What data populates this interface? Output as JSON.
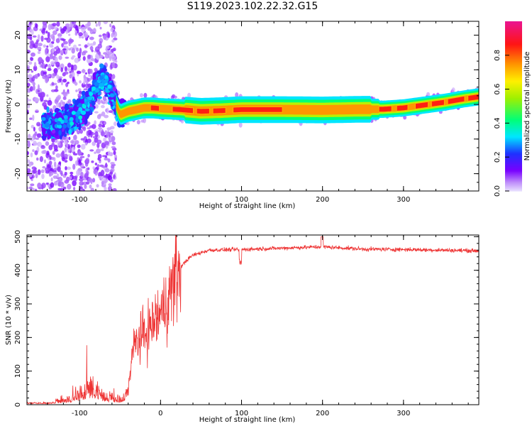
{
  "title": "S119.2023.102.22.32.G15",
  "chart_data": [
    {
      "type": "heatmap",
      "xlabel": "Height of straight line (km)",
      "ylabel": "Frequency (Hz)",
      "xlim": [
        -165,
        393
      ],
      "ylim": [
        -25,
        24
      ],
      "xticks": [
        -100,
        0,
        100,
        200,
        300
      ],
      "yticks": [
        -20,
        -10,
        0,
        10,
        20
      ],
      "colorbar": {
        "label": "Normalized spectral amplitude",
        "range": [
          0,
          1
        ],
        "ticks": [
          "0.0",
          "0.2",
          "0.4",
          "0.6",
          "0.8"
        ],
        "tick_values": [
          0,
          0.2,
          0.4,
          0.6,
          0.8
        ]
      },
      "ridge": {
        "x": [
          -130,
          -110,
          -90,
          -80,
          -70,
          -60,
          -50,
          -40,
          -30,
          -20,
          -10,
          0,
          25,
          50,
          75,
          100,
          150,
          200,
          250,
          275,
          300,
          325,
          350,
          375,
          393
        ],
        "y": [
          -6,
          -4,
          0,
          5,
          8,
          3,
          -3,
          -2,
          -1.5,
          -1,
          -1,
          -1.2,
          -1.5,
          -2,
          -1.8,
          -1.5,
          -1.5,
          -1.6,
          -1.4,
          -1.4,
          -1,
          -0.2,
          0.6,
          1.6,
          2.2
        ]
      }
    },
    {
      "type": "line",
      "xlabel": "Height of straight line (km)",
      "ylabel": "SNR (10 * v/v)",
      "xlim": [
        -165,
        393
      ],
      "ylim": [
        0,
        505
      ],
      "xticks": [
        -100,
        0,
        100,
        200,
        300
      ],
      "yticks": [
        0,
        100,
        200,
        300,
        400,
        500
      ],
      "color": "#ee3333",
      "envelope": {
        "x": [
          -165,
          -140,
          -130,
          -115,
          -100,
          -90,
          -80,
          -70,
          -60,
          -50,
          -40,
          -35,
          -30,
          -20,
          -10,
          0,
          10,
          20,
          30,
          40,
          60,
          100,
          150,
          200,
          250,
          300,
          350,
          393
        ],
        "y": [
          10,
          10,
          12,
          22,
          32,
          55,
          60,
          30,
          25,
          20,
          40,
          150,
          190,
          210,
          240,
          270,
          320,
          390,
          425,
          445,
          460,
          462,
          466,
          470,
          463,
          462,
          460,
          458
        ]
      }
    }
  ]
}
